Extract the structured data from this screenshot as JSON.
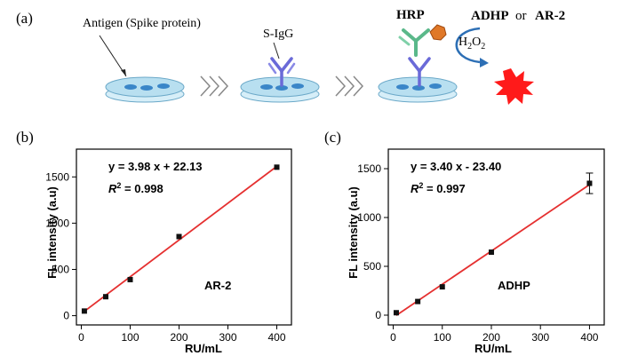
{
  "schematic": {
    "panel_label": "(a)",
    "antigen_label": "Antigen (Spike protein)",
    "antibody_label": "S-IgG",
    "enzyme_label": "HRP",
    "substrate_label_a": "ADHP",
    "substrate_or": "or",
    "substrate_label_b": "AR-2",
    "h2o2_main": "H",
    "h2o2_sub1": "2",
    "h2o2_mid": "O",
    "h2o2_sub2": "2",
    "colors": {
      "dish": "#b8dff0",
      "spot": "#3a86c8",
      "antibody": "#6a6ad8",
      "secondary": "#5ab88a",
      "hrp": "#e07828",
      "signal": "#ff1a1a",
      "arrow": "#2d6fb5"
    }
  },
  "chart_data": [
    {
      "type": "scatter",
      "panel_label": "(b)",
      "x": [
        6.25,
        50,
        100,
        200,
        400
      ],
      "y": [
        50,
        205,
        390,
        855,
        1605
      ],
      "error": [
        0,
        0,
        0,
        0,
        0
      ],
      "fit": {
        "slope": 3.98,
        "intercept": 22.13,
        "color": "#e53030"
      },
      "equation": "y = 3.98 x + 22.13",
      "r2_symbol": "R",
      "r2_exp": "2",
      "r2_value": " = 0.998",
      "label": "AR-2",
      "xlabel": "RU/mL",
      "ylabel": "FL intensity (a.u)",
      "xlim": [
        -10,
        430
      ],
      "ylim": [
        -100,
        1800
      ],
      "xticks": [
        0,
        100,
        200,
        300,
        400
      ],
      "yticks": [
        0,
        500,
        1000,
        1500
      ]
    },
    {
      "type": "scatter",
      "panel_label": "(c)",
      "x": [
        6.25,
        50,
        100,
        200,
        400
      ],
      "y": [
        25,
        140,
        290,
        645,
        1350
      ],
      "error": [
        0,
        0,
        0,
        0,
        105
      ],
      "fit": {
        "slope": 3.4,
        "intercept": -23.4,
        "color": "#e53030"
      },
      "equation": "y = 3.40 x - 23.40",
      "r2_symbol": "R",
      "r2_exp": "2",
      "r2_value": " = 0.997",
      "label": "ADHP",
      "xlabel": "RU/mL",
      "ylabel": "FL intensity (a.u)",
      "xlim": [
        -10,
        430
      ],
      "ylim": [
        -100,
        1700
      ],
      "xticks": [
        0,
        100,
        200,
        300,
        400
      ],
      "yticks": [
        0,
        500,
        1000,
        1500
      ]
    }
  ]
}
